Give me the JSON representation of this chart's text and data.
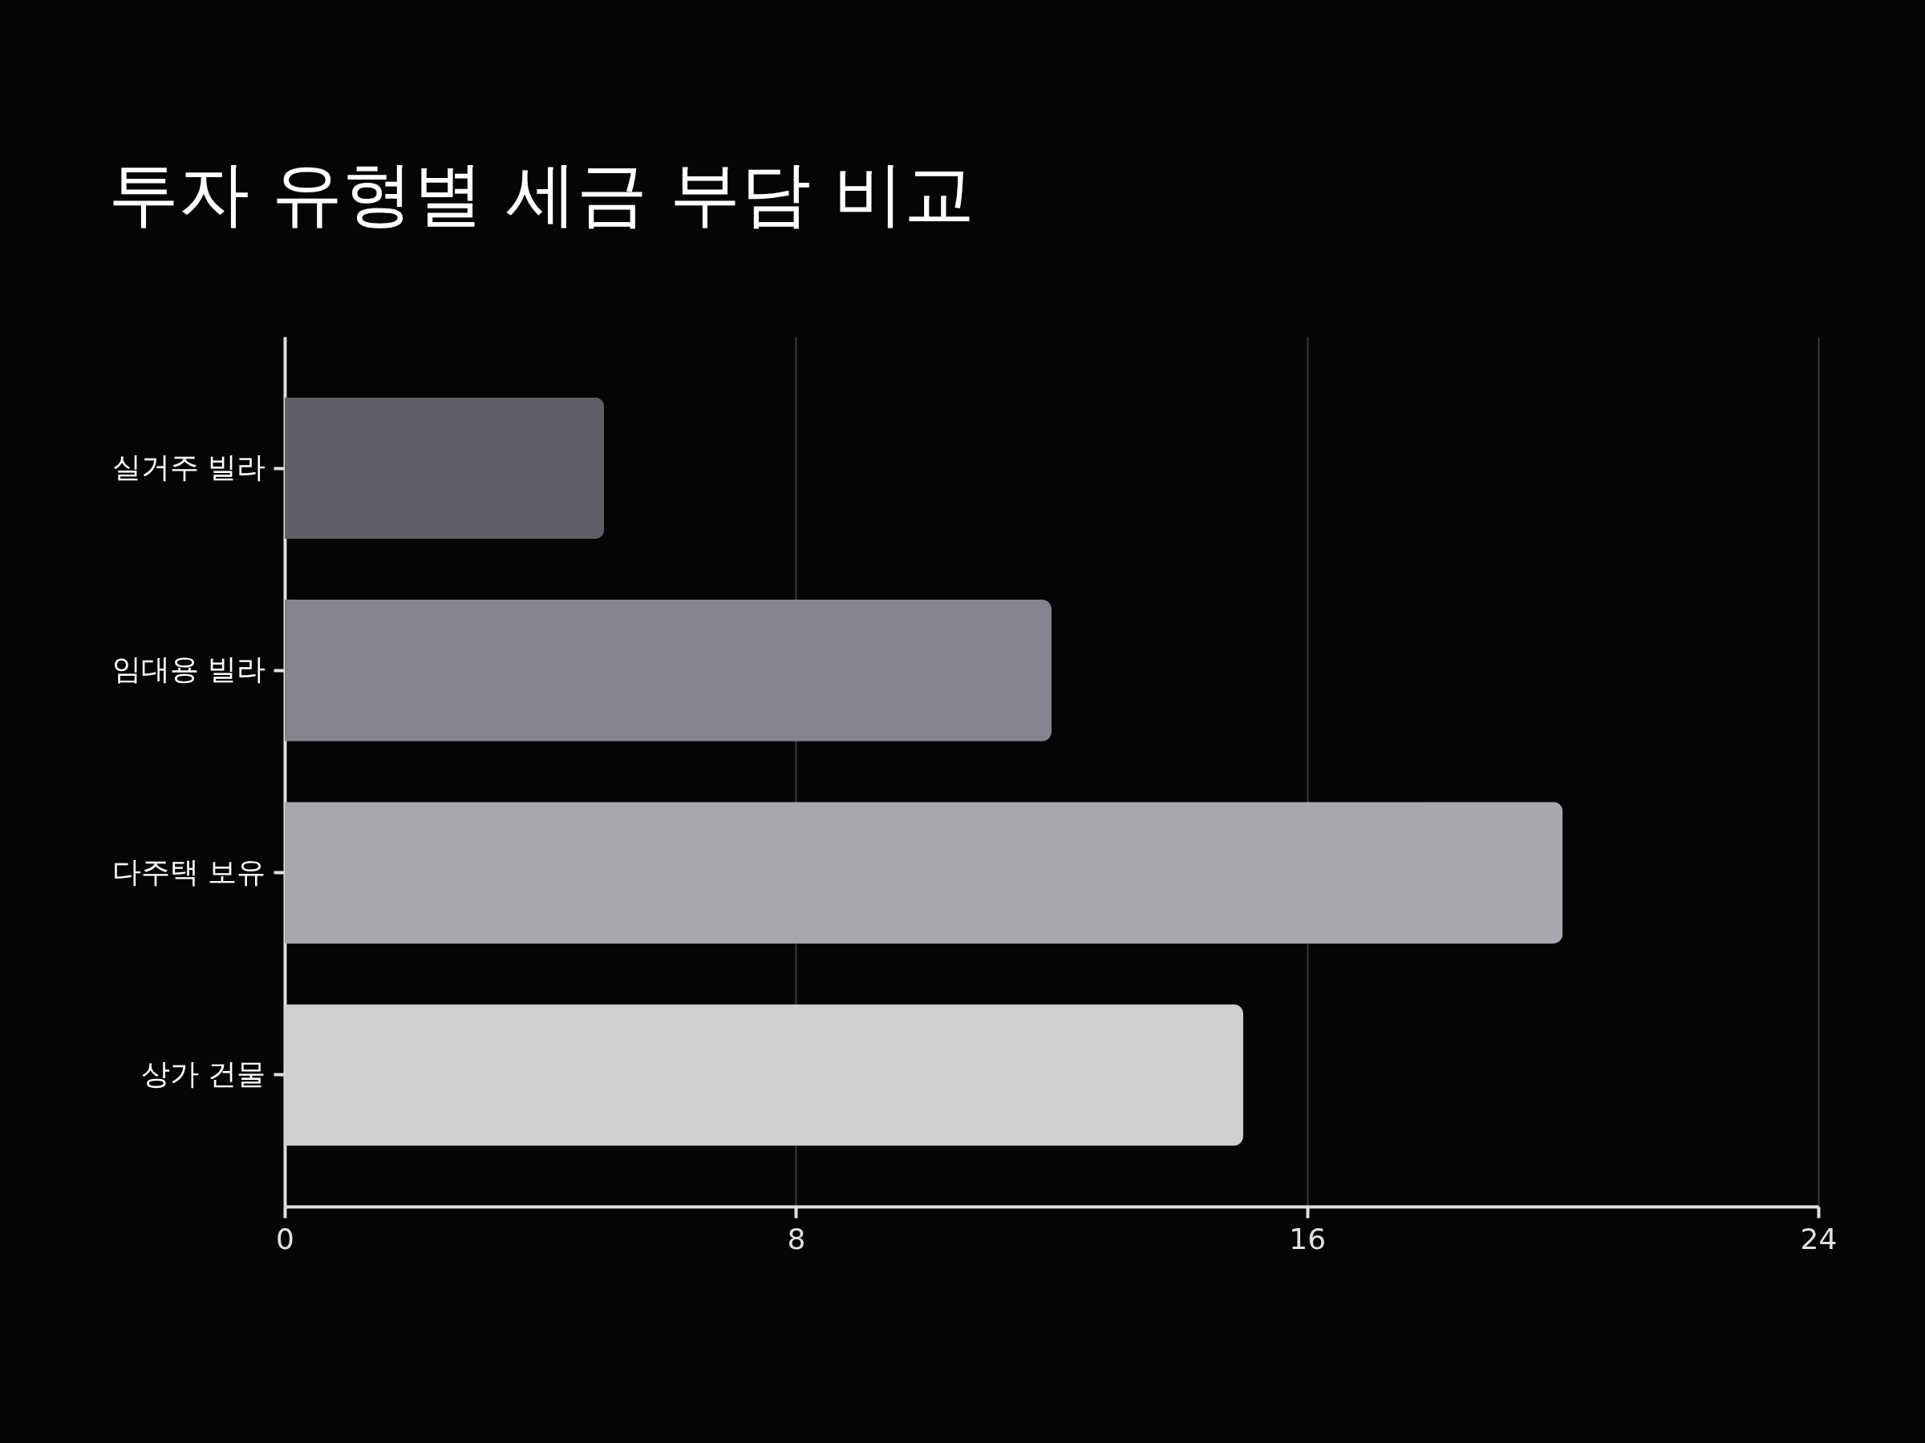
{
  "chart_data": {
    "type": "bar",
    "orientation": "horizontal",
    "title": "투자 유형별 세금 부담 비교",
    "categories": [
      "실거주 빌라",
      "임대용 빌라",
      "다주택 보유",
      "상가 건물"
    ],
    "values": [
      5,
      12,
      20,
      15
    ],
    "colors": [
      "#5f5f68",
      "#84848e",
      "#a7a8ad",
      "#cfcfd1"
    ],
    "xlim": [
      0,
      24
    ],
    "xticks": [
      0,
      8,
      16,
      24
    ],
    "grid": "x"
  }
}
